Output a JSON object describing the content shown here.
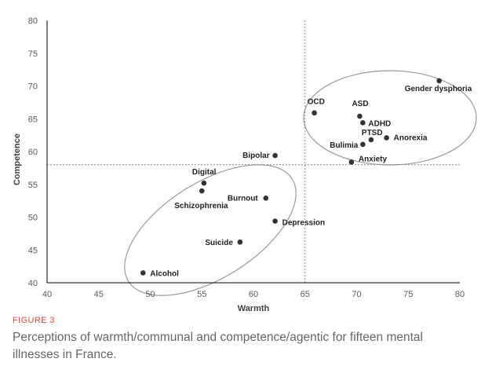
{
  "chart_data": {
    "type": "scatter",
    "title": "",
    "xlabel": "Warmth",
    "ylabel": "Competence",
    "xlim": [
      40,
      80
    ],
    "ylim": [
      40,
      80
    ],
    "xticks": [
      40,
      45,
      50,
      55,
      60,
      65,
      70,
      75,
      80
    ],
    "yticks": [
      40,
      45,
      50,
      55,
      60,
      65,
      70,
      75,
      80
    ],
    "reference_lines": {
      "x": 65,
      "y": 58
    },
    "points": [
      {
        "label": "Gender dysphoria",
        "x": 78,
        "y": 70.8
      },
      {
        "label": "OCD",
        "x": 65.9,
        "y": 65.9
      },
      {
        "label": "ASD",
        "x": 70.3,
        "y": 65.4
      },
      {
        "label": "ADHD",
        "x": 70.6,
        "y": 64.4
      },
      {
        "label": "PTSD",
        "x": 71.4,
        "y": 61.8
      },
      {
        "label": "Anorexia",
        "x": 72.9,
        "y": 62.1
      },
      {
        "label": "Bulimia",
        "x": 70.6,
        "y": 61.1
      },
      {
        "label": "Anxiety",
        "x": 69.5,
        "y": 58.4
      },
      {
        "label": "Bipolar",
        "x": 62.1,
        "y": 59.4
      },
      {
        "label": "Digital",
        "x": 55.2,
        "y": 55.2
      },
      {
        "label": "Schizophrenia",
        "x": 55,
        "y": 54
      },
      {
        "label": "Burnout",
        "x": 61.2,
        "y": 52.9
      },
      {
        "label": "Depression",
        "x": 62.1,
        "y": 49.4
      },
      {
        "label": "Suicide",
        "x": 58.7,
        "y": 46.2
      },
      {
        "label": "Alcohol",
        "x": 49.3,
        "y": 41.5
      }
    ],
    "clusters": [
      {
        "members": [
          "Gender dysphoria",
          "OCD",
          "ASD",
          "ADHD",
          "PTSD",
          "Anorexia",
          "Bulimia",
          "Anxiety"
        ]
      },
      {
        "members": [
          "Digital",
          "Schizophrenia",
          "Burnout",
          "Depression",
          "Suicide",
          "Alcohol",
          "Bipolar"
        ]
      }
    ]
  },
  "figure": {
    "label": "FIGURE 3",
    "caption": "Perceptions of warmth/communal and competence/agentic for fifteen mental illnesses in France."
  }
}
